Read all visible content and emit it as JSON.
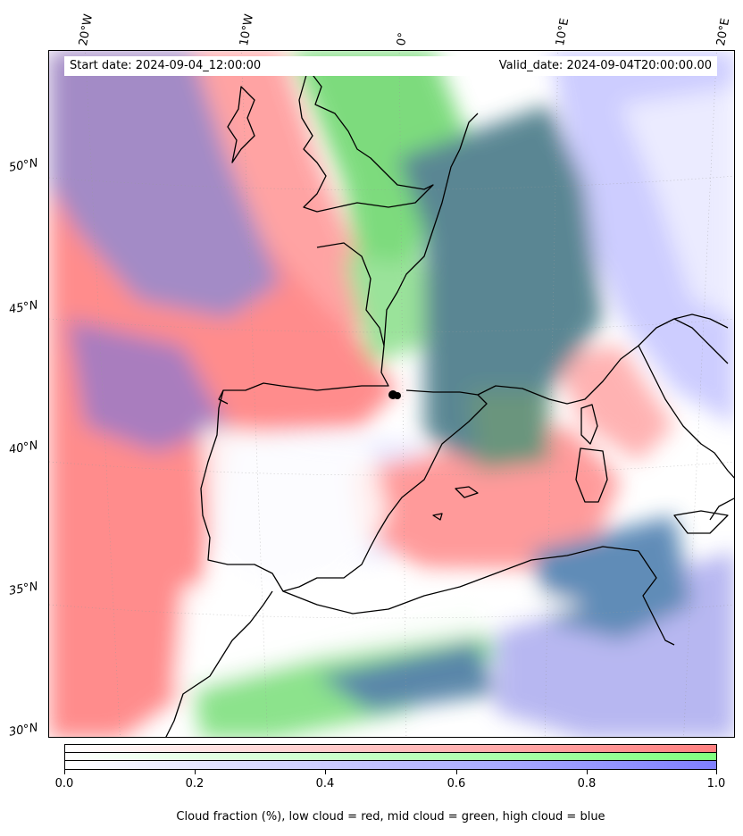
{
  "header": {
    "start_date": "Start date: 2024-09-04_12:00:00",
    "valid_date": "Valid_date: 2024-09-04T20:00:00.00"
  },
  "axes": {
    "longitude_labels": [
      "20°W",
      "10°W",
      "0°",
      "10°E",
      "20°E"
    ],
    "latitude_labels": [
      "50°N",
      "45°N",
      "40°N",
      "35°N",
      "30°N"
    ]
  },
  "colorbar": {
    "ticks": [
      "0.0",
      "0.2",
      "0.4",
      "0.6",
      "0.8",
      "1.0"
    ],
    "label": "Cloud fraction (%), low cloud = red, mid cloud = green, high cloud = blue",
    "colors": {
      "low": "#ff7f7f",
      "mid": "#7fff7f",
      "high": "#7f7fff"
    }
  },
  "map": {
    "coastline_color": "#000000",
    "marker_color": "#000000"
  }
}
